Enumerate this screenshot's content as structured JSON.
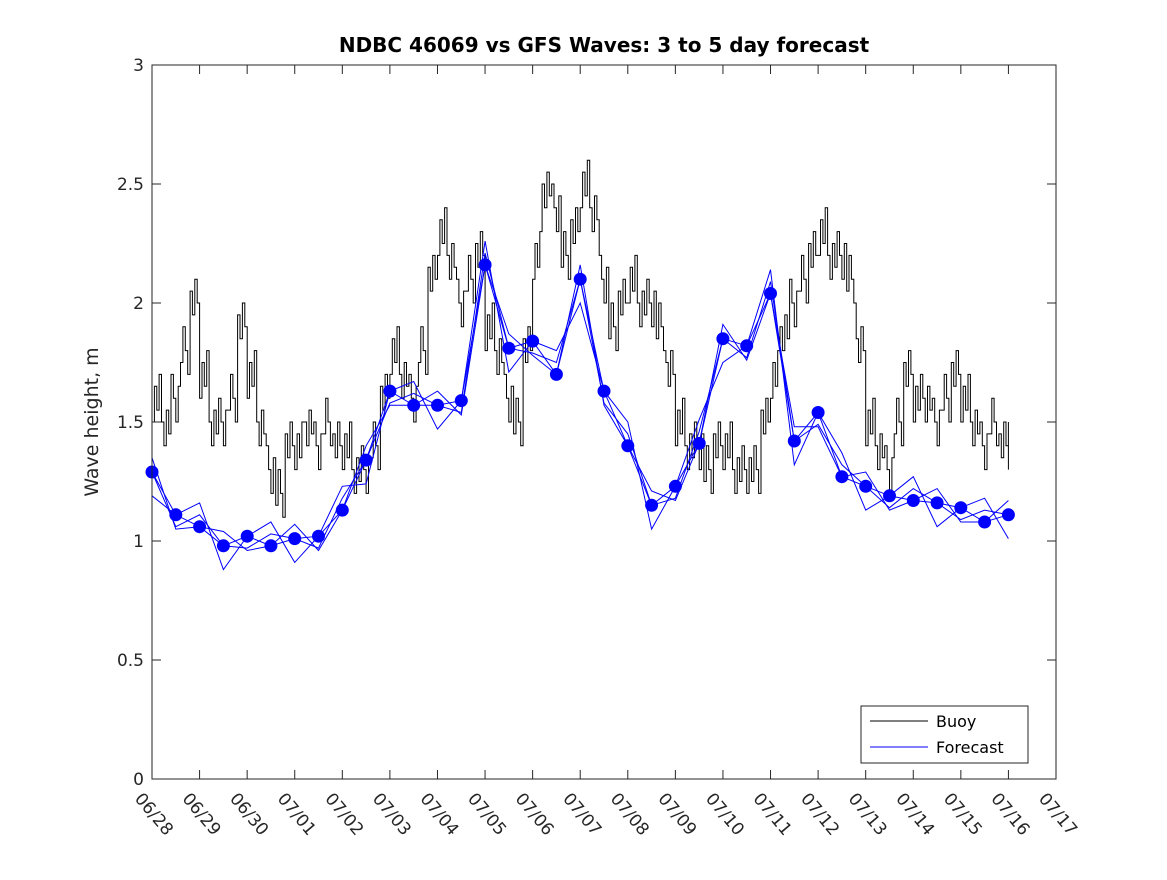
{
  "chart_data": {
    "type": "line",
    "title": "NDBC 46069 vs GFS Waves: 3 to 5 day forecast",
    "xlabel": "",
    "ylabel": "Wave height, m",
    "xlim": [
      "06/28",
      "07/17"
    ],
    "ylim": [
      0,
      3
    ],
    "x_ticks": [
      "06/28",
      "06/29",
      "06/30",
      "07/01",
      "07/02",
      "07/03",
      "07/04",
      "07/05",
      "07/06",
      "07/07",
      "07/08",
      "07/09",
      "07/10",
      "07/11",
      "07/12",
      "07/13",
      "07/14",
      "07/15",
      "07/16",
      "07/17"
    ],
    "y_ticks": [
      "0",
      "0.5",
      "1",
      "1.5",
      "2",
      "2.5",
      "3"
    ],
    "grid": false,
    "legend": {
      "position": "bottom-right",
      "entries": [
        "Buoy",
        "Forecast"
      ]
    },
    "colors": {
      "buoy": "#000000",
      "forecast": "#0000ff",
      "axes": "#262626"
    },
    "series": [
      {
        "name": "Buoy",
        "x_days_from_06_28": [
          0,
          0.2,
          0.4,
          0.6,
          0.8,
          1.0,
          1.2,
          1.4,
          1.6,
          1.8,
          2.0,
          2.2,
          2.4,
          2.6,
          2.8,
          3.0,
          3.2,
          3.4,
          3.6,
          3.8,
          4.0,
          4.2,
          4.4,
          4.6,
          4.8,
          5.0,
          5.2,
          5.4,
          5.6,
          5.8,
          6.0,
          6.2,
          6.4,
          6.6,
          6.8,
          7.0,
          7.2,
          7.4,
          7.6,
          7.8,
          8.0,
          8.2,
          8.4,
          8.6,
          8.8,
          9.0,
          9.2,
          9.4,
          9.6,
          9.8,
          10.0,
          10.2,
          10.4,
          10.6,
          10.8,
          11.0,
          11.2,
          11.4,
          11.6,
          11.8,
          12.0,
          12.2,
          12.4,
          12.6,
          12.8,
          13.0,
          13.2,
          13.4,
          13.6,
          13.8,
          14.0,
          14.2,
          14.4,
          14.6,
          14.8,
          15.0,
          15.2,
          15.4,
          15.6,
          15.8,
          16.0,
          16.2,
          16.4,
          16.6,
          16.8,
          17.0,
          17.2,
          17.4,
          17.6,
          17.8,
          18.0
        ],
        "values": [
          1.6,
          1.5,
          1.6,
          1.8,
          2.0,
          1.7,
          1.5,
          1.5,
          1.6,
          1.9,
          1.7,
          1.5,
          1.3,
          1.2,
          1.4,
          1.4,
          1.5,
          1.4,
          1.5,
          1.4,
          1.4,
          1.3,
          1.3,
          1.4,
          1.6,
          1.8,
          1.7,
          1.6,
          1.8,
          2.1,
          2.3,
          2.2,
          2.0,
          2.1,
          2.2,
          1.9,
          1.8,
          1.6,
          1.5,
          1.8,
          2.2,
          2.5,
          2.4,
          2.2,
          2.3,
          2.5,
          2.4,
          2.1,
          1.9,
          2.0,
          2.1,
          2.0,
          2.0,
          1.9,
          1.7,
          1.5,
          1.4,
          1.4,
          1.3,
          1.4,
          1.4,
          1.3,
          1.3,
          1.3,
          1.5,
          1.7,
          1.9,
          2.0,
          2.1,
          2.2,
          2.3,
          2.2,
          2.2,
          2.1,
          1.8,
          1.5,
          1.4,
          1.3,
          1.5,
          1.7,
          1.6,
          1.6,
          1.5,
          1.6,
          1.7,
          1.6,
          1.5,
          1.4,
          1.5,
          1.4,
          1.4
        ]
      },
      {
        "name": "Forecast",
        "x_days_from_06_28": [
          0,
          0.5,
          1.0,
          1.5,
          2.0,
          2.5,
          3.0,
          3.5,
          4.0,
          4.5,
          5.0,
          5.5,
          6.0,
          6.5,
          7.0,
          7.5,
          8.0,
          8.5,
          9.0,
          9.5,
          10.0,
          10.5,
          11.0,
          11.5,
          12.0,
          12.5,
          13.0,
          13.5,
          14.0,
          14.5,
          15.0,
          15.5,
          16.0,
          16.5,
          17.0,
          17.5,
          18.0
        ],
        "values": [
          1.29,
          1.11,
          1.06,
          0.98,
          1.02,
          0.98,
          1.01,
          1.02,
          1.13,
          1.34,
          1.63,
          1.57,
          1.57,
          1.59,
          2.16,
          1.81,
          1.84,
          1.7,
          2.1,
          1.63,
          1.4,
          1.15,
          1.23,
          1.41,
          1.85,
          1.82,
          2.04,
          1.42,
          1.54,
          1.27,
          1.23,
          1.19,
          1.17,
          1.16,
          1.14,
          1.08,
          1.11
        ]
      }
    ]
  }
}
